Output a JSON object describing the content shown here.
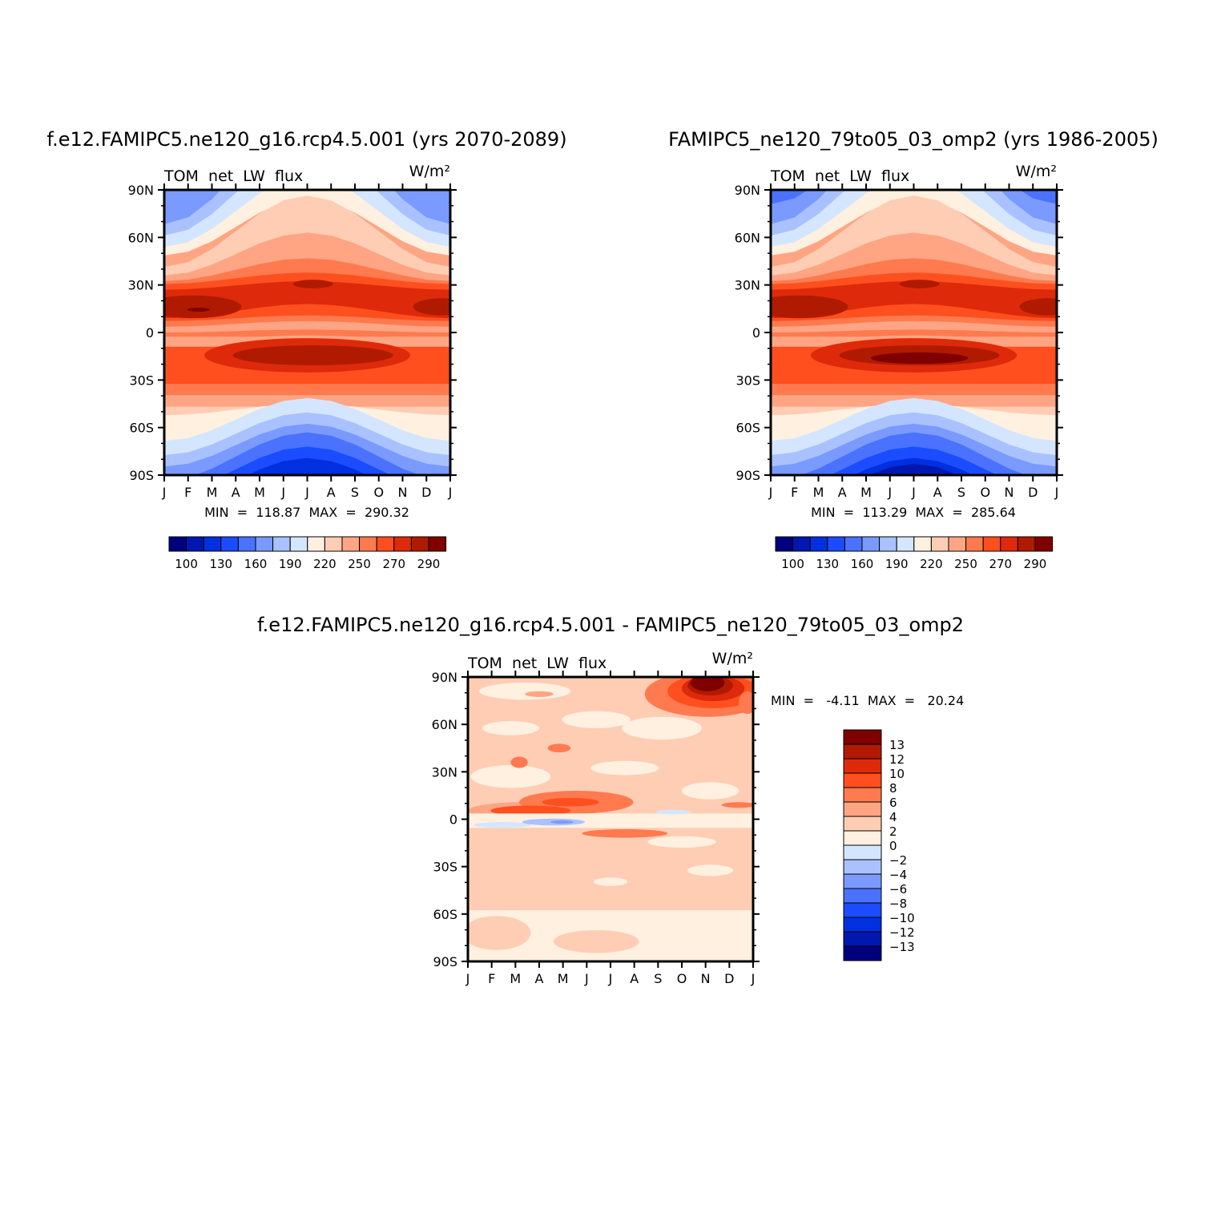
{
  "colors": {
    "abs_scale": [
      "#00007f",
      "#0018b0",
      "#0030e0",
      "#1b4cff",
      "#4a72ff",
      "#7a9aff",
      "#a9c2ff",
      "#d4e6ff",
      "#fff0e0",
      "#ffcdb4",
      "#ffa584",
      "#ff7a4f",
      "#ff4f1f",
      "#de2a0a",
      "#b01a00",
      "#800000"
    ],
    "diff_scale": [
      "#00007f",
      "#0018b0",
      "#0030e0",
      "#1b4cff",
      "#4a72ff",
      "#7a9aff",
      "#a9c2ff",
      "#d4e6ff",
      "#fff0e0",
      "#ffcdb4",
      "#ffa584",
      "#ff7a4f",
      "#ff4f1f",
      "#de2a0a",
      "#b01a00",
      "#800000"
    ]
  },
  "chart_data": [
    {
      "type": "heatmap",
      "title": "f.e12.FAMIPC5.ne120_g16.rcp4.5.001 (yrs 2070-2089)",
      "subtitle_left": "TOM  net  LW  flux",
      "subtitle_right": "W/m²",
      "x": [
        "J",
        "F",
        "M",
        "A",
        "M",
        "J",
        "J",
        "A",
        "S",
        "O",
        "N",
        "D",
        "J"
      ],
      "y": [
        "90N",
        "60N",
        "30N",
        "0",
        "30S",
        "60S",
        "90S"
      ],
      "stats": "MIN  =  118.87  MAX  =  290.32",
      "colorbar_labels": [
        "100",
        "130",
        "160",
        "190",
        "220",
        "250",
        "270",
        "290"
      ],
      "levels": [
        100,
        110,
        120,
        130,
        140,
        150,
        160,
        170,
        180,
        190,
        200,
        210,
        220,
        230,
        240,
        250,
        260,
        270,
        280,
        290,
        300
      ],
      "min": 118.87,
      "max": 290.32
    },
    {
      "type": "heatmap",
      "title": "FAMIPC5_ne120_79to05_03_omp2 (yrs 1986-2005)",
      "subtitle_left": "TOM  net  LW  flux",
      "subtitle_right": "W/m²",
      "x": [
        "J",
        "F",
        "M",
        "A",
        "M",
        "J",
        "J",
        "A",
        "S",
        "O",
        "N",
        "D",
        "J"
      ],
      "y": [
        "90N",
        "60N",
        "30N",
        "0",
        "30S",
        "60S",
        "90S"
      ],
      "stats": "MIN  =  113.29  MAX  =  285.64",
      "colorbar_labels": [
        "100",
        "130",
        "160",
        "190",
        "220",
        "250",
        "270",
        "290"
      ],
      "min": 113.29,
      "max": 285.64
    },
    {
      "type": "heatmap",
      "title": "f.e12.FAMIPC5.ne120_g16.rcp4.5.001 - FAMIPC5_ne120_79to05_03_omp2",
      "subtitle_left": "TOM  net  LW  flux",
      "subtitle_right": "W/m²",
      "x": [
        "J",
        "F",
        "M",
        "A",
        "M",
        "J",
        "J",
        "A",
        "S",
        "O",
        "N",
        "D",
        "J"
      ],
      "y": [
        "90N",
        "60N",
        "30N",
        "0",
        "30S",
        "60S",
        "90S"
      ],
      "stats": "MIN  =   -4.11  MAX  =   20.24",
      "colorbar_labels": [
        "13",
        "12",
        "10",
        "8",
        "6",
        "4",
        "2",
        "0",
        "−2",
        "−4",
        "−6",
        "−8",
        "−10",
        "−12",
        "−13"
      ],
      "min": -4.11,
      "max": 20.24
    }
  ]
}
